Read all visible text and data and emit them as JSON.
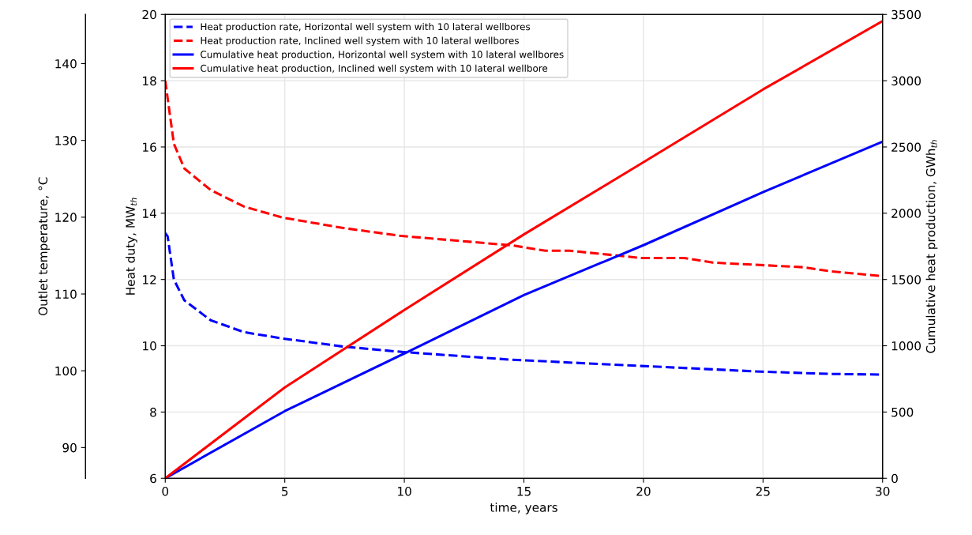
{
  "chart_data": {
    "type": "line",
    "xlabel": "time, years",
    "ylabel": "Heat duty, MW$_{th}$",
    "y2label": "Cumulative heat production, GWh$_{th}$",
    "y3label": "Outlet temperature, °C",
    "xlim": [
      0,
      30
    ],
    "xticks": [
      0,
      5,
      10,
      15,
      20,
      25,
      30
    ],
    "ylim": [
      6,
      20
    ],
    "yticks": [
      6,
      8,
      10,
      12,
      14,
      16,
      18,
      20
    ],
    "y2lim": [
      0,
      3500
    ],
    "y2ticks": [
      0,
      500,
      1000,
      1500,
      2000,
      2500,
      3000,
      3500
    ],
    "y3lim": [
      86,
      146.4
    ],
    "y3ticks": [
      90,
      100,
      110,
      120,
      130,
      140
    ],
    "grid": true,
    "legend": "top left",
    "series": [
      {
        "name": "Heat production rate, Horizontal well system with 10 lateral wellbores",
        "color": "#0000ff",
        "axis": "y",
        "line_style": "dashed",
        "x": [
          0,
          0.1,
          0.2,
          0.36,
          0.8,
          1.9,
          3.3,
          4.9,
          7.4,
          9.8,
          14.45,
          19.9,
          24.9,
          27.8,
          30
        ],
        "values": [
          13.4,
          13.3,
          12.8,
          12.0,
          11.37,
          10.77,
          10.41,
          10.22,
          9.98,
          9.82,
          9.58,
          9.39,
          9.22,
          9.15,
          9.13
        ]
      },
      {
        "name": "Heat production rate, Inclined well system with 10 lateral wellbores",
        "color": "#ff0000",
        "axis": "y",
        "line_style": "dashed",
        "x": [
          0,
          0.36,
          0.8,
          1.9,
          3.3,
          4.9,
          7.4,
          9.8,
          14.5,
          15.9,
          16.9,
          19.9,
          21.7,
          22.9,
          26.7,
          27.8,
          30
        ],
        "values": [
          18.0,
          16.1,
          15.35,
          14.7,
          14.2,
          13.87,
          13.56,
          13.32,
          13.03,
          12.87,
          12.87,
          12.65,
          12.65,
          12.51,
          12.37,
          12.25,
          12.1
        ]
      },
      {
        "name": "Cumulative heat production, Horizontal well system with 10 lateral wellbores",
        "color": "#0000ff",
        "axis": "y2",
        "line_style": "solid",
        "x": [
          0,
          5,
          10,
          15,
          20,
          25,
          30
        ],
        "values": [
          0,
          507,
          942,
          1383,
          1759,
          2159,
          2540
        ]
      },
      {
        "name": "Cumulative heat production, Inclined well system with 10 lateral wellbore",
        "color": "#ff0000",
        "axis": "y2",
        "line_style": "solid",
        "x": [
          0,
          5,
          10,
          15,
          20,
          25,
          30
        ],
        "values": [
          0,
          686,
          1270,
          1840,
          2385,
          2934,
          3450
        ]
      }
    ]
  }
}
